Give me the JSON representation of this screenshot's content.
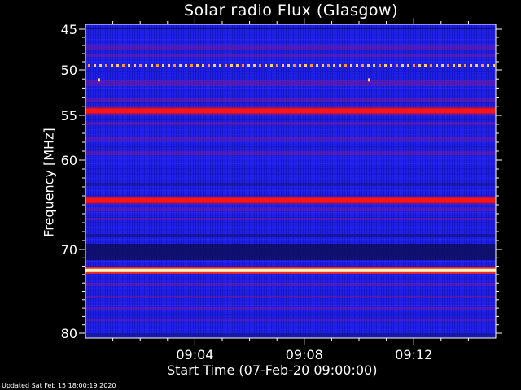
{
  "chart_data": {
    "type": "heatmap",
    "title": "Solar radio Flux (Glasgow)",
    "ylabel": "Frequency [MHz]",
    "xlabel": "Start Time (07-Feb-20 09:00:00)",
    "y_ticks": [
      "45",
      "50",
      "55",
      "60",
      "70",
      "80"
    ],
    "x_ticks": [
      "09:04",
      "09:08",
      "09:12"
    ],
    "y_scale": "nonlinear",
    "colors": {
      "background_min": "#0a0a8a",
      "low": "#1a1aff",
      "mid": "#8a1a8a",
      "high": "#ff1010",
      "max": "#ffffc0"
    },
    "bands_mhz": [
      {
        "freq": 49.5,
        "intensity": "dotted-high"
      },
      {
        "freq": 54.5,
        "intensity": "high"
      },
      {
        "freq": 64.5,
        "intensity": "high"
      },
      {
        "freq": 72.5,
        "intensity": "max"
      }
    ],
    "updated": "Updated Sat Feb 15 18:00:19 2020"
  }
}
